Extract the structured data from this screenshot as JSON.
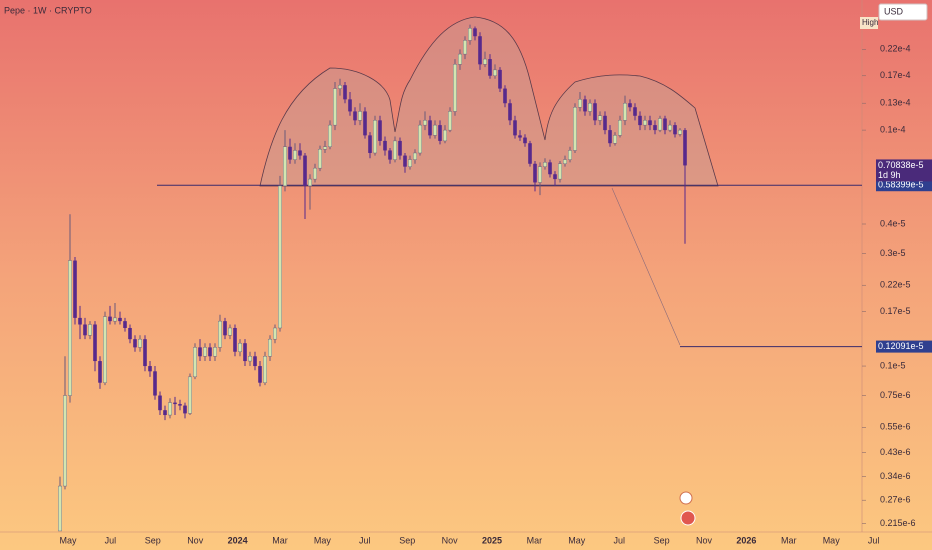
{
  "chart_data": {
    "type": "candlestick",
    "title": "Pepe · 1W · CRYPTO",
    "currency": "USD",
    "high_label": "High",
    "log_scale": true,
    "ylim": [
      1.98e-07,
      3.56e-05
    ],
    "yticks": [
      {
        "value": 2.2e-05,
        "label": "0.22e-4"
      },
      {
        "value": 1.7e-05,
        "label": "0.17e-4"
      },
      {
        "value": 1.3e-05,
        "label": "0.13e-4"
      },
      {
        "value": 1e-05,
        "label": "0.1e-4"
      },
      {
        "value": 4e-06,
        "label": "0.4e-5"
      },
      {
        "value": 3e-06,
        "label": "0.3e-5"
      },
      {
        "value": 2.2e-06,
        "label": "0.22e-5"
      },
      {
        "value": 1.7e-06,
        "label": "0.17e-5"
      },
      {
        "value": 1e-06,
        "label": "0.1e-5"
      },
      {
        "value": 7.5e-07,
        "label": "0.75e-6"
      },
      {
        "value": 5.5e-07,
        "label": "0.55e-6"
      },
      {
        "value": 4.3e-07,
        "label": "0.43e-6"
      },
      {
        "value": 3.4e-07,
        "label": "0.34e-6"
      },
      {
        "value": 2.7e-07,
        "label": "0.27e-6"
      },
      {
        "value": 2.15e-07,
        "label": "0.215e-6"
      }
    ],
    "xticks": [
      "May",
      "Jul",
      "Sep",
      "Nov",
      "2024",
      "Mar",
      "May",
      "Jul",
      "Sep",
      "Nov",
      "2025",
      "Mar",
      "May",
      "Jul",
      "Sep",
      "Nov",
      "2026",
      "Mar",
      "May",
      "Jul"
    ],
    "last_price": {
      "value": 7.0838e-06,
      "label": "0.70838e-5",
      "countdown": "1d 9h"
    },
    "price_lines": [
      {
        "value": 5.8399e-06,
        "label": "0.58399e-5"
      },
      {
        "value": 1.2091e-06,
        "label": "0.12091e-5"
      }
    ],
    "up_color": "#d3e6b0",
    "down_color": "#57298c",
    "candles": [
      [
        2e-07,
        3.4e-07,
        2e-07,
        3.1e-07
      ],
      [
        3.1e-07,
        1.1e-06,
        3e-07,
        7.5e-07
      ],
      [
        7.5e-07,
        4.4e-06,
        7e-07,
        2.8e-06
      ],
      [
        2.8e-06,
        2.9e-06,
        1.5e-06,
        1.6e-06
      ],
      [
        1.6e-06,
        1.8e-06,
        1.3e-06,
        1.5e-06
      ],
      [
        1.5e-06,
        1.6e-06,
        1.3e-06,
        1.35e-06
      ],
      [
        1.35e-06,
        1.55e-06,
        1.3e-06,
        1.5e-06
      ],
      [
        1.5e-06,
        1.55e-06,
        9.5e-07,
        1.05e-06
      ],
      [
        1.05e-06,
        1.1e-06,
        8e-07,
        8.5e-07
      ],
      [
        8.5e-07,
        1.7e-06,
        8.3e-07,
        1.62e-06
      ],
      [
        1.62e-06,
        1.8e-06,
        1.5e-06,
        1.55e-06
      ],
      [
        1.55e-06,
        1.85e-06,
        1.5e-06,
        1.6e-06
      ],
      [
        1.6e-06,
        1.7e-06,
        1.5e-06,
        1.55e-06
      ],
      [
        1.55e-06,
        1.6e-06,
        1.4e-06,
        1.45e-06
      ],
      [
        1.45e-06,
        1.5e-06,
        1.25e-06,
        1.3e-06
      ],
      [
        1.3e-06,
        1.35e-06,
        1.15e-06,
        1.2e-06
      ],
      [
        1.2e-06,
        1.35e-06,
        1.15e-06,
        1.3e-06
      ],
      [
        1.3e-06,
        1.35e-06,
        9.5e-07,
        1e-06
      ],
      [
        1e-06,
        1.05e-06,
        9e-07,
        9.5e-07
      ],
      [
        9.5e-07,
        1e-06,
        7.2e-07,
        7.5e-07
      ],
      [
        7.5e-07,
        7.8e-07,
        6.2e-07,
        6.5e-07
      ],
      [
        6.5e-07,
        6.8e-07,
        5.9e-07,
        6.2e-07
      ],
      [
        6.2e-07,
        7.3e-07,
        6e-07,
        7e-07
      ],
      [
        7e-07,
        7.4e-07,
        6.2e-07,
        6.9e-07
      ],
      [
        6.9e-07,
        7.2e-07,
        6.5e-07,
        6.8e-07
      ],
      [
        6.8e-07,
        7e-07,
        6e-07,
        6.3e-07
      ],
      [
        6.3e-07,
        9.3e-07,
        6.2e-07,
        9e-07
      ],
      [
        9e-07,
        1.25e-06,
        8.8e-07,
        1.2e-06
      ],
      [
        1.2e-06,
        1.3e-06,
        1.05e-06,
        1.1e-06
      ],
      [
        1.1e-06,
        1.25e-06,
        1.05e-06,
        1.2e-06
      ],
      [
        1.2e-06,
        1.25e-06,
        1.05e-06,
        1.1e-06
      ],
      [
        1.1e-06,
        1.25e-06,
        1.05e-06,
        1.2e-06
      ],
      [
        1.2e-06,
        1.65e-06,
        1.15e-06,
        1.55e-06
      ],
      [
        1.55e-06,
        1.6e-06,
        1.3e-06,
        1.35e-06
      ],
      [
        1.35e-06,
        1.5e-06,
        1.3e-06,
        1.45e-06
      ],
      [
        1.45e-06,
        1.5e-06,
        1.1e-06,
        1.15e-06
      ],
      [
        1.15e-06,
        1.3e-06,
        1.1e-06,
        1.25e-06
      ],
      [
        1.25e-06,
        1.3e-06,
        1e-06,
        1.05e-06
      ],
      [
        1.05e-06,
        1.15e-06,
        1e-06,
        1.1e-06
      ],
      [
        1.1e-06,
        1.15e-06,
        9.6e-07,
        1e-06
      ],
      [
        1e-06,
        1.05e-06,
        8.2e-07,
        8.5e-07
      ],
      [
        8.5e-07,
        1.15e-06,
        8.3e-07,
        1.1e-06
      ],
      [
        1.1e-06,
        1.35e-06,
        1.05e-06,
        1.3e-06
      ],
      [
        1.3e-06,
        1.5e-06,
        1.25e-06,
        1.45e-06
      ],
      [
        1.45e-06,
        6.4e-06,
        1.4e-06,
        5.8e-06
      ],
      [
        5.8e-06,
        1e-05,
        5.5e-06,
        8.5e-06
      ],
      [
        8.5e-06,
        9.2e-06,
        7.2e-06,
        7.5e-06
      ],
      [
        7.5e-06,
        8.8e-06,
        7.2e-06,
        8.2e-06
      ],
      [
        8.2e-06,
        8.8e-06,
        7.5e-06,
        7.8e-06
      ],
      [
        7.8e-06,
        8e-06,
        4.2e-06,
        5.8e-06
      ],
      [
        5.8e-06,
        6.5e-06,
        4.6e-06,
        6.2e-06
      ],
      [
        6.2e-06,
        7.2e-06,
        6e-06,
        6.9e-06
      ],
      [
        6.9e-06,
        8.6e-06,
        6.7e-06,
        8.3e-06
      ],
      [
        8.3e-06,
        9e-06,
        8e-06,
        8.5e-06
      ],
      [
        8.5e-06,
        1.1e-05,
        8.3e-06,
        1.05e-05
      ],
      [
        1.05e-05,
        1.6e-05,
        1e-05,
        1.5e-05
      ],
      [
        1.5e-05,
        1.65e-05,
        1.4e-05,
        1.55e-05
      ],
      [
        1.55e-05,
        1.6e-05,
        1.3e-05,
        1.35e-05
      ],
      [
        1.35e-05,
        1.45e-05,
        1.15e-05,
        1.2e-05
      ],
      [
        1.2e-05,
        1.25e-05,
        1.05e-05,
        1.1e-05
      ],
      [
        1.1e-05,
        1.3e-05,
        1.05e-05,
        1.2e-05
      ],
      [
        1.2e-05,
        1.25e-05,
        9.2e-06,
        9.5e-06
      ],
      [
        9.5e-06,
        9.8e-06,
        7.6e-06,
        8e-06
      ],
      [
        8e-06,
        1.15e-05,
        7.8e-06,
        1.1e-05
      ],
      [
        1.1e-05,
        1.15e-05,
        8.6e-06,
        9e-06
      ],
      [
        9e-06,
        9.4e-06,
        7.8e-06,
        8.2e-06
      ],
      [
        8.2e-06,
        8.4e-06,
        7.2e-06,
        7.5e-06
      ],
      [
        7.5e-06,
        9.4e-06,
        7.3e-06,
        9e-06
      ],
      [
        9e-06,
        9.3e-06,
        7.5e-06,
        7.8e-06
      ],
      [
        7.8e-06,
        8e-06,
        6.6e-06,
        7e-06
      ],
      [
        7e-06,
        7.8e-06,
        6.8e-06,
        7.5e-06
      ],
      [
        7.5e-06,
        8.3e-06,
        7.2e-06,
        8e-06
      ],
      [
        8e-06,
        1.1e-05,
        7.8e-06,
        1.05e-05
      ],
      [
        1.05e-05,
        1.2e-05,
        1e-05,
        1.1e-05
      ],
      [
        1.1e-05,
        1.15e-05,
        9.2e-06,
        9.5e-06
      ],
      [
        9.5e-06,
        1.1e-05,
        9.2e-06,
        1.05e-05
      ],
      [
        1.05e-05,
        1.1e-05,
        8.7e-06,
        9e-06
      ],
      [
        9e-06,
        1.05e-05,
        8.8e-06,
        1e-05
      ],
      [
        1e-05,
        1.25e-05,
        9.8e-06,
        1.2e-05
      ],
      [
        1.2e-05,
        2e-05,
        1.15e-05,
        1.9e-05
      ],
      [
        1.9e-05,
        2.2e-05,
        1.8e-05,
        2.1e-05
      ],
      [
        2.1e-05,
        2.5e-05,
        2e-05,
        2.4e-05
      ],
      [
        2.4e-05,
        2.8e-05,
        2.3e-05,
        2.7e-05
      ],
      [
        2.7e-05,
        2.75e-05,
        2.4e-05,
        2.5e-05
      ],
      [
        2.5e-05,
        2.6e-05,
        1.8e-05,
        1.9e-05
      ],
      [
        1.9e-05,
        2.15e-05,
        1.85e-05,
        2e-05
      ],
      [
        2e-05,
        2.1e-05,
        1.65e-05,
        1.7e-05
      ],
      [
        1.7e-05,
        1.9e-05,
        1.65e-05,
        1.8e-05
      ],
      [
        1.8e-05,
        1.85e-05,
        1.45e-05,
        1.5e-05
      ],
      [
        1.5e-05,
        1.55e-05,
        1.25e-05,
        1.3e-05
      ],
      [
        1.3e-05,
        1.35e-05,
        1.05e-05,
        1.1e-05
      ],
      [
        1.1e-05,
        1.15e-05,
        9.2e-06,
        9.5e-06
      ],
      [
        9.5e-06,
        1e-05,
        9e-06,
        9.3e-06
      ],
      [
        9.3e-06,
        9.6e-06,
        8.5e-06,
        8.8e-06
      ],
      [
        8.8e-06,
        9e-06,
        7e-06,
        7.2e-06
      ],
      [
        7.2e-06,
        7.4e-06,
        5.5e-06,
        6e-06
      ],
      [
        6e-06,
        7.3e-06,
        5.3e-06,
        7e-06
      ],
      [
        7e-06,
        7.6e-06,
        6.8e-06,
        7.3e-06
      ],
      [
        7.3e-06,
        7.5e-06,
        6.3e-06,
        6.5e-06
      ],
      [
        6.5e-06,
        6.7e-06,
        5.8e-06,
        6.2e-06
      ],
      [
        6.2e-06,
        7.4e-06,
        6e-06,
        7.2e-06
      ],
      [
        7.2e-06,
        7.8e-06,
        7e-06,
        7.5e-06
      ],
      [
        7.5e-06,
        8.5e-06,
        7.3e-06,
        8.2e-06
      ],
      [
        8.2e-06,
        1.3e-05,
        8e-06,
        1.25e-05
      ],
      [
        1.25e-05,
        1.45e-05,
        1.2e-05,
        1.35e-05
      ],
      [
        1.35e-05,
        1.4e-05,
        1.15e-05,
        1.2e-05
      ],
      [
        1.2e-05,
        1.35e-05,
        1.15e-05,
        1.3e-05
      ],
      [
        1.3e-05,
        1.35e-05,
        1.05e-05,
        1.1e-05
      ],
      [
        1.1e-05,
        1.2e-05,
        1.05e-05,
        1.15e-05
      ],
      [
        1.15e-05,
        1.2e-05,
        9.6e-06,
        1e-05
      ],
      [
        1e-05,
        1.05e-05,
        8.5e-06,
        8.8e-06
      ],
      [
        8.8e-06,
        9.8e-06,
        8.6e-06,
        9.5e-06
      ],
      [
        9.5e-06,
        1.15e-05,
        9.3e-06,
        1.1e-05
      ],
      [
        1.1e-05,
        1.4e-05,
        1.05e-05,
        1.3e-05
      ],
      [
        1.3e-05,
        1.35e-05,
        1.2e-05,
        1.25e-05
      ],
      [
        1.25e-05,
        1.3e-05,
        1.1e-05,
        1.15e-05
      ],
      [
        1.15e-05,
        1.2e-05,
        1e-05,
        1.05e-05
      ],
      [
        1.05e-05,
        1.15e-05,
        1e-05,
        1.1e-05
      ],
      [
        1.1e-05,
        1.15e-05,
        1e-05,
        1.05e-05
      ],
      [
        1.05e-05,
        1.1e-05,
        9.6e-06,
        1e-05
      ],
      [
        1e-05,
        1.15e-05,
        9.8e-06,
        1.12e-05
      ],
      [
        1.12e-05,
        1.15e-05,
        9.6e-06,
        1e-05
      ],
      [
        1e-05,
        1.1e-05,
        9.8e-06,
        1.05e-05
      ],
      [
        1.05e-05,
        1.08e-05,
        9.3e-06,
        9.6e-06
      ],
      [
        9.6e-06,
        1.02e-05,
        9.4e-06,
        1e-05
      ],
      [
        1e-05,
        1.02e-05,
        3.3e-06,
        7.0838e-06
      ]
    ]
  }
}
